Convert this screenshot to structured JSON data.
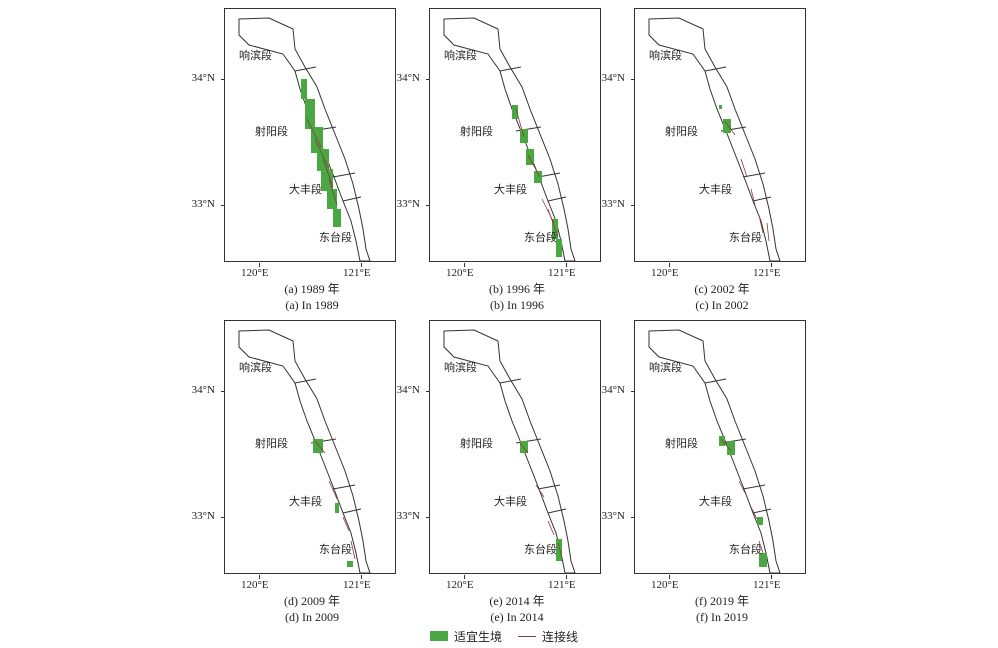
{
  "segments": [
    "响滨段",
    "射阳段",
    "大丰段",
    "东台段"
  ],
  "axes": {
    "y_ticks": [
      "34°N",
      "33°N"
    ],
    "x_ticks": [
      "120°E",
      "121°E"
    ]
  },
  "panels": [
    {
      "caption_cn": "(a) 1989 年",
      "caption_en": "(a) In 1989"
    },
    {
      "caption_cn": "(b) 1996 年",
      "caption_en": "(b) In 1996"
    },
    {
      "caption_cn": "(c) 2002 年",
      "caption_en": "(c) In 2002"
    },
    {
      "caption_cn": "(d) 2009 年",
      "caption_en": "(d) In 2009"
    },
    {
      "caption_cn": "(e) 2014 年",
      "caption_en": "(e) In 2014"
    },
    {
      "caption_cn": "(f) 2019 年",
      "caption_en": "(f) In 2019"
    }
  ],
  "legend": {
    "habitat": "适宜生境",
    "corridor": "连接线"
  },
  "colors": {
    "habitat": "#4aa843",
    "corridor": "#8a3a3a",
    "outline": "#333333"
  }
}
